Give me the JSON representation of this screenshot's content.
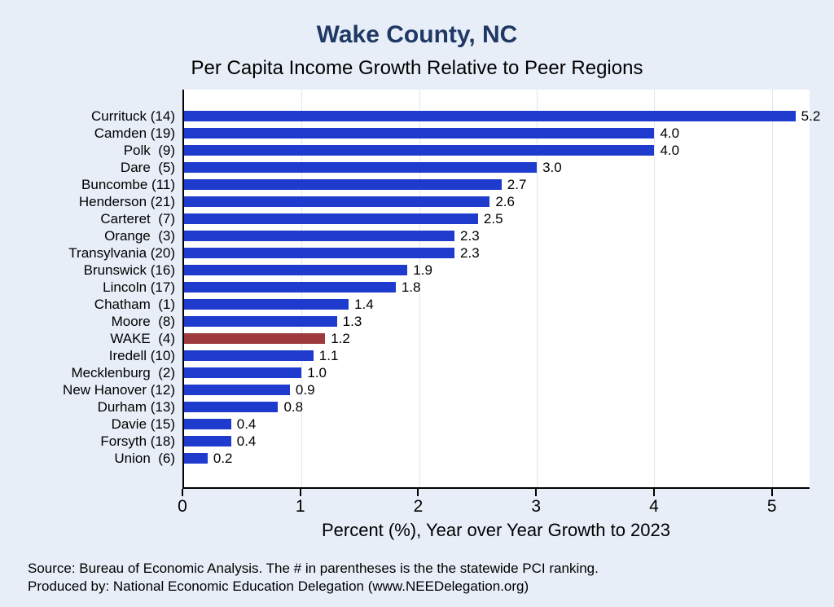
{
  "page": {
    "title": "Wake County, NC",
    "subtitle": "Per Capita Income Growth Relative to Peer Regions"
  },
  "chart_data": {
    "type": "bar",
    "orientation": "horizontal",
    "title": "Wake County, NC",
    "subtitle": "Per Capita Income Growth Relative to Peer Regions",
    "xlabel": "Percent (%), Year over Year Growth to 2023",
    "xlim": [
      0,
      5.32
    ],
    "xticks": [
      0,
      1,
      2,
      3,
      4,
      5
    ],
    "grid": "vertical-light",
    "legend": "none",
    "bar_color": "#1e3bcd",
    "highlight_color": "#9e3a3d",
    "highlighted_category": "WAKE  (4)",
    "rows": [
      {
        "label": "Currituck (14)",
        "value": 5.2,
        "display": "5.2",
        "highlight": false
      },
      {
        "label": "Camden (19)",
        "value": 4.0,
        "display": "4.0",
        "highlight": false
      },
      {
        "label": "Polk  (9)",
        "value": 4.0,
        "display": "4.0",
        "highlight": false
      },
      {
        "label": "Dare  (5)",
        "value": 3.0,
        "display": "3.0",
        "highlight": false
      },
      {
        "label": "Buncombe (11)",
        "value": 2.7,
        "display": "2.7",
        "highlight": false
      },
      {
        "label": "Henderson (21)",
        "value": 2.6,
        "display": "2.6",
        "highlight": false
      },
      {
        "label": "Carteret  (7)",
        "value": 2.5,
        "display": "2.5",
        "highlight": false
      },
      {
        "label": "Orange  (3)",
        "value": 2.3,
        "display": "2.3",
        "highlight": false
      },
      {
        "label": "Transylvania (20)",
        "value": 2.3,
        "display": "2.3",
        "highlight": false
      },
      {
        "label": "Brunswick (16)",
        "value": 1.9,
        "display": "1.9",
        "highlight": false
      },
      {
        "label": "Lincoln (17)",
        "value": 1.8,
        "display": "1.8",
        "highlight": false
      },
      {
        "label": "Chatham  (1)",
        "value": 1.4,
        "display": "1.4",
        "highlight": false
      },
      {
        "label": "Moore  (8)",
        "value": 1.3,
        "display": "1.3",
        "highlight": false
      },
      {
        "label": "WAKE  (4)",
        "value": 1.2,
        "display": "1.2",
        "highlight": true
      },
      {
        "label": "Iredell (10)",
        "value": 1.1,
        "display": "1.1",
        "highlight": false
      },
      {
        "label": "Mecklenburg  (2)",
        "value": 1.0,
        "display": "1.0",
        "highlight": false
      },
      {
        "label": "New Hanover (12)",
        "value": 0.9,
        "display": "0.9",
        "highlight": false
      },
      {
        "label": "Durham (13)",
        "value": 0.8,
        "display": "0.8",
        "highlight": false
      },
      {
        "label": "Davie (15)",
        "value": 0.4,
        "display": "0.4",
        "highlight": false
      },
      {
        "label": "Forsyth (18)",
        "value": 0.4,
        "display": "0.4",
        "highlight": false
      },
      {
        "label": "Union  (6)",
        "value": 0.2,
        "display": "0.2",
        "highlight": false
      }
    ]
  },
  "footer": {
    "line1": "Source: Bureau of Economic Analysis. The # in parentheses is the the statewide PCI ranking.",
    "line2": "Produced by: National Economic Education Delegation (www.NEEDelegation.org)"
  }
}
